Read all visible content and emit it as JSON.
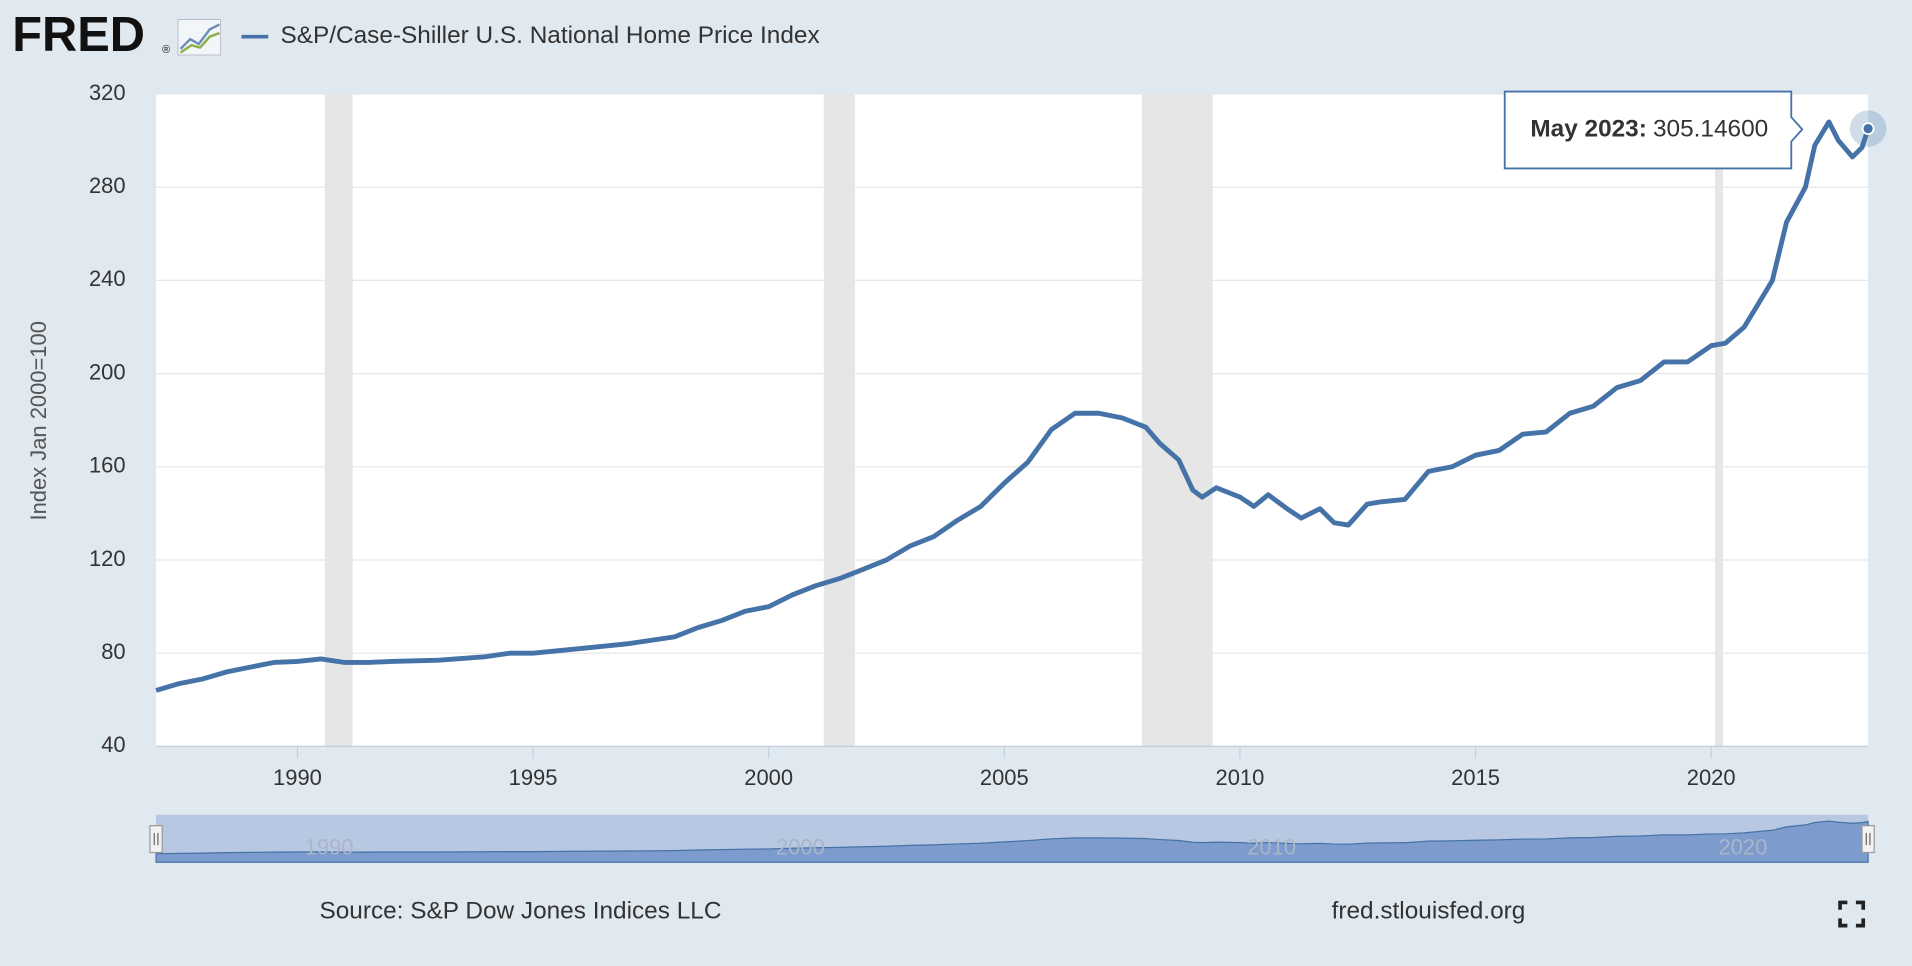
{
  "header": {
    "logo": "FRED",
    "logo_mark": "®"
  },
  "chart_data": {
    "type": "line",
    "title": "S&P/Case-Shiller U.S. National Home Price Index",
    "y_label": "Index Jan 2000=100",
    "x": [
      1987.0,
      1987.5,
      1988,
      1988.5,
      1989,
      1989.5,
      1990,
      1990.5,
      1991,
      1991.5,
      1992,
      1993,
      1994,
      1994.5,
      1995,
      1996,
      1997,
      1998,
      1998.5,
      1999,
      1999.5,
      2000,
      2000.5,
      2001,
      2001.5,
      2002,
      2002.5,
      2003,
      2003.5,
      2004,
      2004.5,
      2005,
      2005.5,
      2006,
      2006.5,
      2007,
      2007.5,
      2008,
      2008.3,
      2008.7,
      2009,
      2009.2,
      2009.5,
      2010,
      2010.3,
      2010.6,
      2011,
      2011.3,
      2011.7,
      2012,
      2012.3,
      2012.7,
      2013,
      2013.5,
      2014,
      2014.5,
      2015,
      2015.5,
      2016,
      2016.5,
      2017,
      2017.5,
      2018,
      2018.5,
      2019,
      2019.5,
      2020,
      2020.3,
      2020.7,
      2021,
      2021.3,
      2021.6,
      2022,
      2022.2,
      2022.5,
      2022.7,
      2023,
      2023.2,
      2023.33
    ],
    "series": [
      {
        "name": "S&P/Case-Shiller U.S. National Home Price Index",
        "color": "#4572a7",
        "values": [
          64,
          67,
          69,
          72,
          74,
          76,
          76.5,
          77.5,
          76,
          76,
          76.5,
          77,
          78.5,
          80,
          80,
          82,
          84,
          87,
          91,
          94,
          98,
          100,
          105,
          109,
          112,
          116,
          120,
          126,
          130,
          137,
          143,
          153,
          162,
          176,
          183,
          183,
          181,
          177,
          170,
          163,
          150,
          147,
          151,
          147,
          143,
          148,
          142,
          138,
          142,
          136,
          135,
          144,
          145,
          146,
          158,
          160,
          165,
          167,
          174,
          175,
          183,
          186,
          194,
          197,
          205,
          205,
          212,
          213,
          220,
          230,
          240,
          265,
          280,
          298,
          308,
          300,
          293,
          297,
          305.146
        ]
      }
    ],
    "recessions": [
      [
        1990.58,
        1991.17
      ],
      [
        2001.17,
        2001.83
      ],
      [
        2007.92,
        2009.42
      ],
      [
        2020.08,
        2020.25
      ]
    ],
    "xlim": [
      1987.0,
      2023.33
    ],
    "ylim": [
      40,
      320
    ],
    "xticks": [
      1990,
      1995,
      2000,
      2005,
      2010,
      2015,
      2020
    ],
    "yticks": [
      40,
      80,
      120,
      160,
      200,
      240,
      280,
      320
    ],
    "grid": true,
    "tooltip": {
      "date": "May 2023:",
      "value": 305.146,
      "value_label": "305.14600"
    },
    "navigator_xticks": [
      1990,
      2000,
      2010,
      2020
    ]
  },
  "footer": {
    "source": "Source: S&P Dow Jones Indices LLC",
    "site": "fred.stlouisfed.org"
  }
}
